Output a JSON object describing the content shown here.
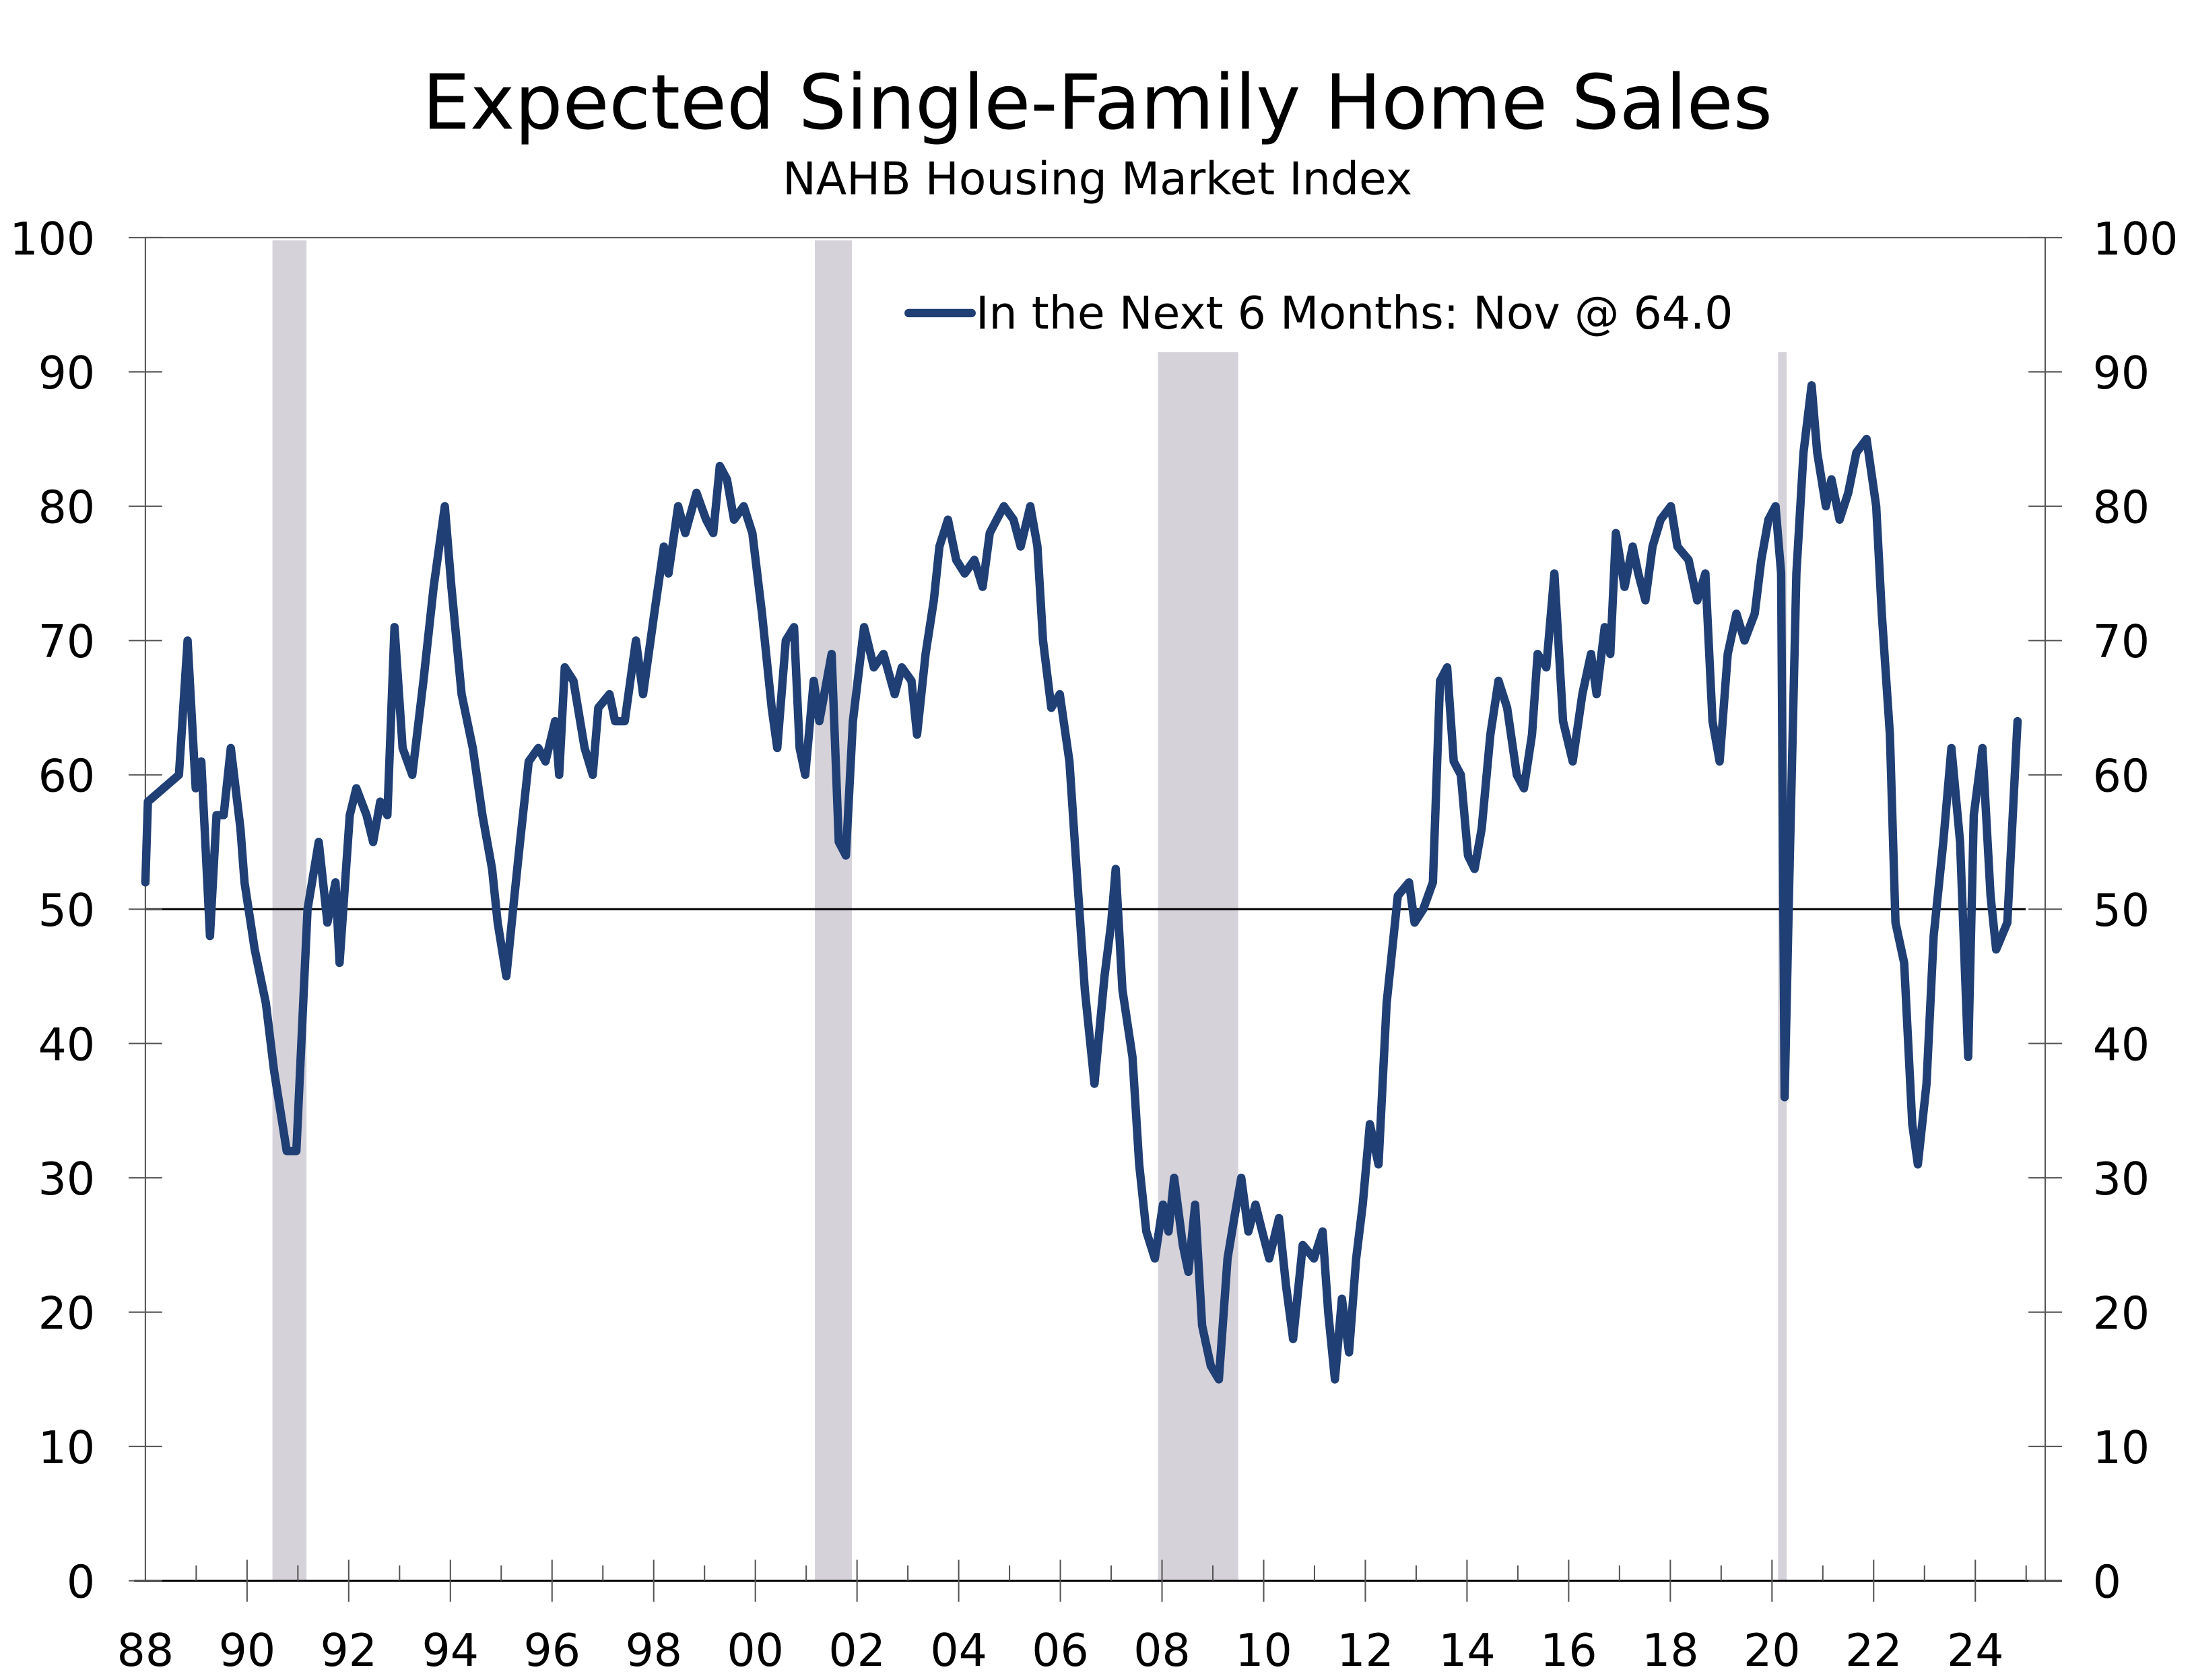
{
  "chart_data": {
    "type": "line",
    "title": "Expected Single-Family Home Sales",
    "subtitle": "NAHB Housing Market Index",
    "xlim": [
      1988,
      2025.6
    ],
    "ylim": [
      0,
      100
    ],
    "y_ticks": [
      0,
      10,
      20,
      30,
      40,
      50,
      60,
      70,
      80,
      90,
      100
    ],
    "y_tick_labels": [
      "0",
      "10",
      "20",
      "30",
      "40",
      "50",
      "60",
      "70",
      "80",
      "90",
      "100"
    ],
    "x_ticks": [
      1988,
      1990,
      1992,
      1994,
      1996,
      1998,
      2000,
      2002,
      2004,
      2006,
      2008,
      2010,
      2012,
      2014,
      2016,
      2018,
      2020,
      2022,
      2024
    ],
    "x_tick_labels": [
      "88",
      "90",
      "92",
      "94",
      "96",
      "98",
      "00",
      "02",
      "04",
      "06",
      "08",
      "10",
      "12",
      "14",
      "16",
      "18",
      "20",
      "22",
      "24"
    ],
    "reference_line": 50,
    "grid": false,
    "legend_placement": "top-center",
    "recessions": [
      [
        1990.5,
        1991.17
      ],
      [
        2001.17,
        2001.9
      ],
      [
        2007.92,
        2009.5
      ],
      [
        2020.12,
        2020.29
      ]
    ],
    "colors": {
      "series": "#1f3f75",
      "recession": "#d6d2da",
      "axis": "#555555"
    },
    "series": [
      {
        "name": "In the Next 6 Months: Nov @ 64.0",
        "x": [
          1988.0,
          1988.05,
          1988.66,
          1988.83,
          1988.99,
          1989.1,
          1989.27,
          1989.4,
          1989.54,
          1989.68,
          1989.87,
          1989.95,
          1990.15,
          1990.37,
          1990.53,
          1990.78,
          1990.97,
          1991.19,
          1991.41,
          1991.58,
          1991.74,
          1991.82,
          1992.02,
          1992.15,
          1992.35,
          1992.48,
          1992.62,
          1992.76,
          1992.9,
          1993.06,
          1993.25,
          1993.47,
          1993.67,
          1993.89,
          1994.02,
          1994.22,
          1994.44,
          1994.63,
          1994.82,
          1994.93,
          1995.1,
          1995.26,
          1995.37,
          1995.54,
          1995.73,
          1995.87,
          1996.06,
          1996.14,
          1996.25,
          1996.42,
          1996.64,
          1996.8,
          1996.91,
          1997.13,
          1997.24,
          1997.43,
          1997.65,
          1997.79,
          1998.01,
          1998.2,
          1998.29,
          1998.48,
          1998.62,
          1998.84,
          1999.03,
          1999.17,
          1999.3,
          1999.44,
          1999.58,
          1999.77,
          1999.94,
          2000.13,
          2000.32,
          2000.43,
          2000.6,
          2000.76,
          2000.87,
          2000.98,
          2001.15,
          2001.26,
          2001.5,
          2001.64,
          2001.78,
          2001.92,
          2002.14,
          2002.33,
          2002.52,
          2002.74,
          2002.88,
          2003.07,
          2003.18,
          2003.35,
          2003.51,
          2003.62,
          2003.79,
          2003.95,
          2004.12,
          2004.31,
          2004.47,
          2004.61,
          2004.75,
          2004.89,
          2005.08,
          2005.22,
          2005.41,
          2005.55,
          2005.66,
          2005.82,
          2005.99,
          2006.18,
          2006.32,
          2006.48,
          2006.67,
          2006.87,
          2007.0,
          2007.09,
          2007.22,
          2007.42,
          2007.55,
          2007.69,
          2007.86,
          2008.02,
          2008.13,
          2008.24,
          2008.41,
          2008.52,
          2008.65,
          2008.79,
          2008.96,
          2009.12,
          2009.29,
          2009.42,
          2009.56,
          2009.7,
          2009.84,
          2009.97,
          2010.11,
          2010.3,
          2010.44,
          2010.58,
          2010.77,
          2010.99,
          2011.16,
          2011.27,
          2011.4,
          2011.54,
          2011.68,
          2011.82,
          2011.95,
          2012.09,
          2012.26,
          2012.42,
          2012.64,
          2012.86,
          2012.97,
          2013.14,
          2013.33,
          2013.47,
          2013.61,
          2013.74,
          2013.88,
          2014.02,
          2014.15,
          2014.29,
          2014.46,
          2014.62,
          2014.79,
          2014.98,
          2015.12,
          2015.28,
          2015.39,
          2015.56,
          2015.72,
          2015.89,
          2016.08,
          2016.27,
          2016.44,
          2016.55,
          2016.71,
          2016.82,
          2016.93,
          2017.1,
          2017.26,
          2017.37,
          2017.51,
          2017.65,
          2017.81,
          2018.01,
          2018.14,
          2018.36,
          2018.53,
          2018.69,
          2018.83,
          2018.97,
          2019.13,
          2019.3,
          2019.46,
          2019.66,
          2019.79,
          2019.93,
          2020.07,
          2020.18,
          2020.25,
          2020.34,
          2020.48,
          2020.62,
          2020.78,
          2020.89,
          2021.06,
          2021.17,
          2021.33,
          2021.5,
          2021.66,
          2021.86,
          2022.05,
          2022.16,
          2022.32,
          2022.43,
          2022.6,
          2022.76,
          2022.87,
          2023.04,
          2023.18,
          2023.37,
          2023.53,
          2023.7,
          2023.86,
          2023.97,
          2024.14,
          2024.3,
          2024.41,
          2024.63,
          2024.83
        ],
        "values": [
          52,
          58,
          60,
          70,
          59,
          61,
          48,
          57,
          57,
          62,
          56,
          52,
          47,
          43,
          38,
          32,
          32,
          50,
          55,
          49,
          52,
          46,
          57,
          59,
          57,
          55,
          58,
          57,
          71,
          62,
          60,
          67,
          74,
          80,
          74,
          66,
          62,
          57,
          53,
          49,
          45,
          51,
          55,
          61,
          62,
          61,
          64,
          60,
          68,
          67,
          62,
          60,
          65,
          66,
          64,
          64,
          70,
          66,
          72,
          77,
          75,
          80,
          78,
          81,
          79,
          78,
          83,
          82,
          79,
          80,
          78,
          72,
          65,
          62,
          70,
          71,
          62,
          60,
          67,
          64,
          69,
          55,
          54,
          64,
          71,
          68,
          69,
          66,
          68,
          67,
          63,
          69,
          73,
          77,
          79,
          76,
          75,
          76,
          74,
          78,
          79,
          80,
          79,
          77,
          80,
          77,
          70,
          65,
          66,
          61,
          53,
          44,
          37,
          45,
          49,
          53,
          44,
          39,
          31,
          26,
          24,
          28,
          26,
          30,
          25,
          23,
          28,
          19,
          16,
          15,
          24,
          27,
          30,
          26,
          28,
          26,
          24,
          27,
          22,
          18,
          25,
          24,
          26,
          20,
          15,
          21,
          17,
          24,
          28,
          34,
          31,
          43,
          51,
          52,
          49,
          50,
          52,
          67,
          68,
          61,
          60,
          54,
          53,
          56,
          63,
          67,
          65,
          60,
          59,
          63,
          69,
          68,
          75,
          64,
          61,
          66,
          69,
          66,
          71,
          69,
          78,
          74,
          77,
          75,
          73,
          77,
          79,
          80,
          77,
          76,
          73,
          75,
          64,
          61,
          69,
          72,
          70,
          72,
          76,
          79,
          80,
          75,
          36,
          52,
          75,
          84,
          89,
          84,
          80,
          82,
          79,
          81,
          84,
          85,
          80,
          72,
          63,
          49,
          46,
          34,
          31,
          37,
          48,
          55,
          62,
          55,
          39,
          57,
          62,
          51,
          47,
          49,
          64
        ]
      }
    ]
  }
}
